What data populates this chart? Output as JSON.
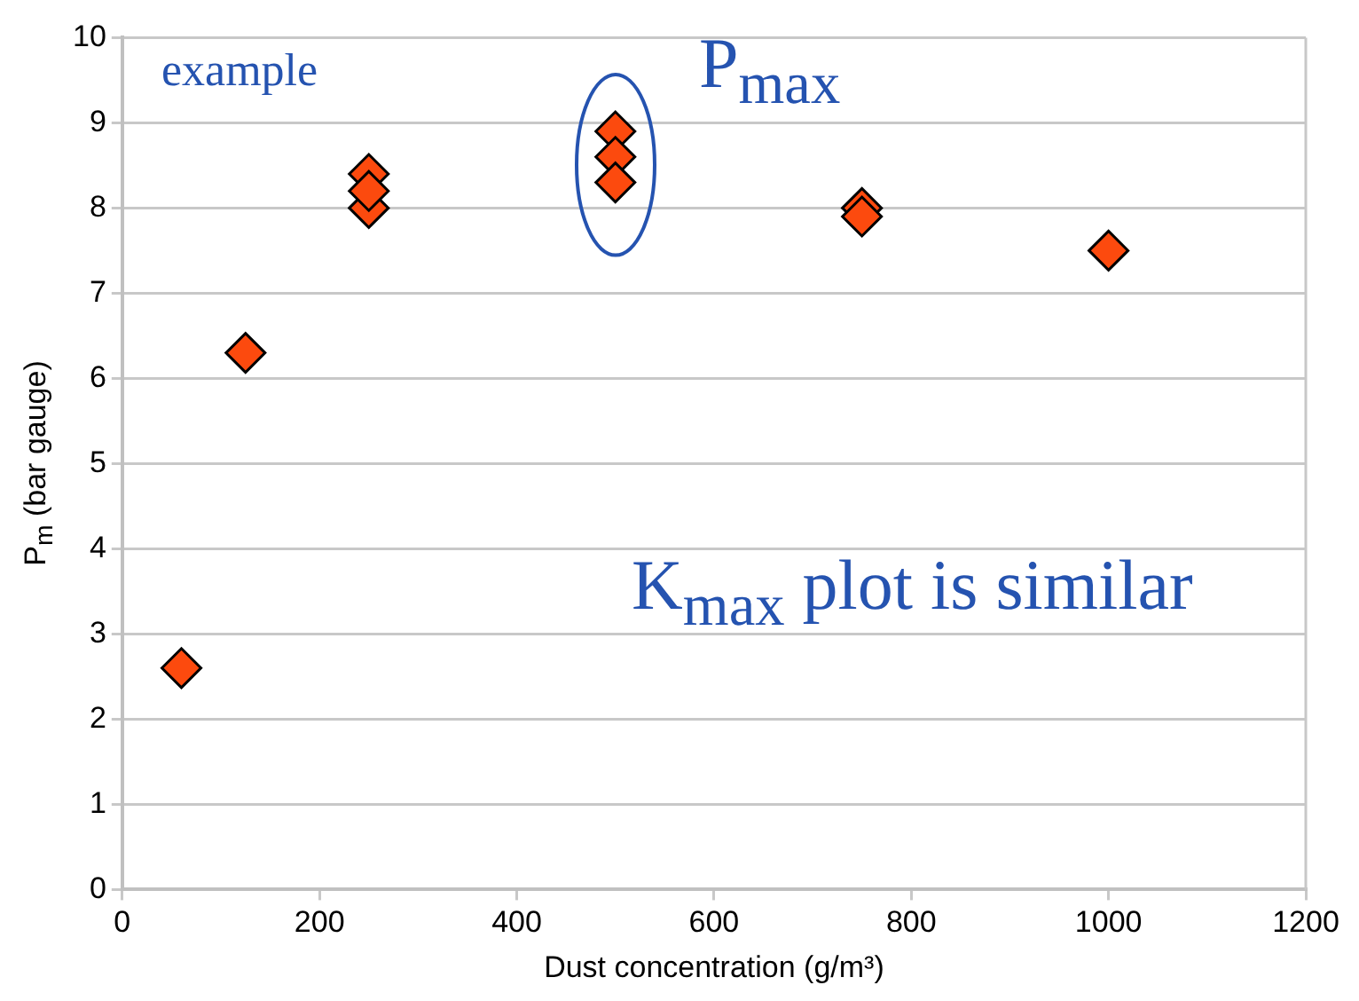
{
  "chart_data": {
    "type": "scatter",
    "xlabel": "Dust concentration (g/m³)",
    "ylabel": "P$_{m}$ (bar gauge)",
    "series": [
      {
        "color": "#fc4a0e",
        "x": [
          60,
          125,
          250,
          250,
          250,
          500,
          500,
          500,
          750,
          750,
          1000
        ],
        "values": [
          2.6,
          6.3,
          8.0,
          8.4,
          8.2,
          8.9,
          8.6,
          8.3,
          8.0,
          7.9,
          7.5
        ]
      }
    ],
    "xlim": [
      0,
      1200
    ],
    "xticks": [
      0,
      200,
      400,
      600,
      800,
      1000,
      1200
    ],
    "ylim": [
      0,
      10
    ],
    "yticks": [
      0,
      1,
      2,
      3,
      4,
      5,
      6,
      7,
      8,
      9,
      10
    ],
    "grid": "y",
    "legend": false,
    "marker": "diamond",
    "annotations": [
      "example",
      "P$_{max}$",
      "K$_{max}$ plot is similar"
    ]
  }
}
